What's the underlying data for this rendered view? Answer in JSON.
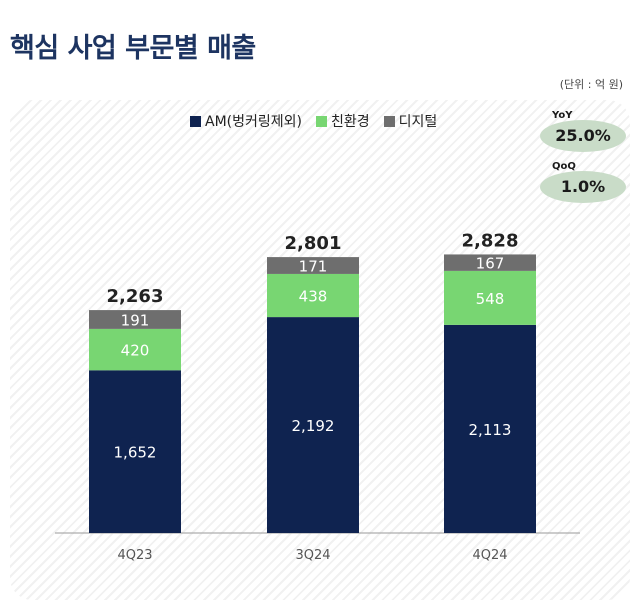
{
  "title": "핵심 사업 부문별 매출",
  "unit_note": "(단위 : 억 원)",
  "badges": {
    "yoy": {
      "label": "YoY",
      "value": "25.0%"
    },
    "qoq": {
      "label": "QoQ",
      "value": "1.0%"
    }
  },
  "colors": {
    "am": "#0f2350",
    "eco": "#78d672",
    "digital": "#6e6e6e",
    "total_text": "#222222",
    "badge_bg": "#c9dcc8"
  },
  "chart_data": {
    "type": "bar",
    "stacked": true,
    "categories": [
      "4Q23",
      "3Q24",
      "4Q24"
    ],
    "series": [
      {
        "name": "AM(벙커링제외)",
        "values": [
          1652,
          2192,
          2113
        ],
        "labels": [
          "1,652",
          "2,192",
          "2,113"
        ]
      },
      {
        "name": "친환경",
        "values": [
          420,
          438,
          548
        ],
        "labels": [
          "420",
          "438",
          "548"
        ]
      },
      {
        "name": "디지털",
        "values": [
          191,
          171,
          167
        ],
        "labels": [
          "191",
          "171",
          "167"
        ]
      }
    ],
    "totals": [
      2263,
      2801,
      2828
    ],
    "total_labels": [
      "2,263",
      "2,801",
      "2,828"
    ],
    "legend_position": "top-center",
    "grid": false
  }
}
